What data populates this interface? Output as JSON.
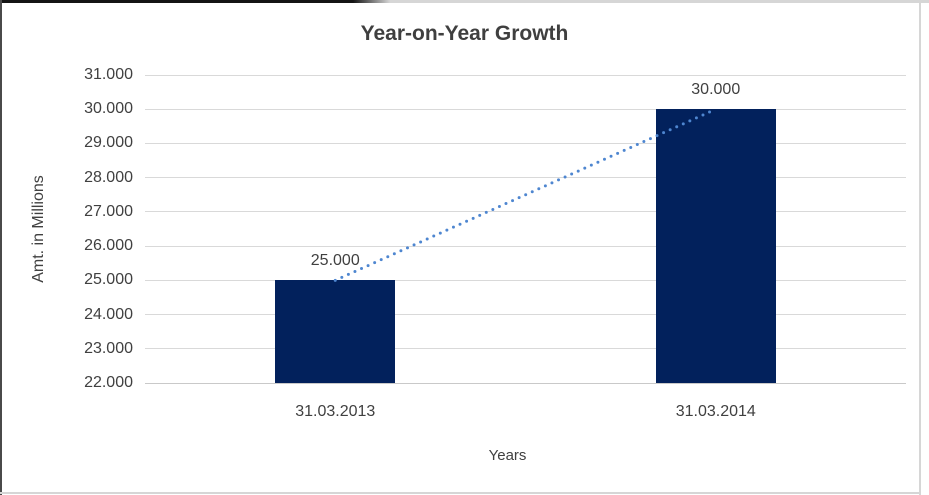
{
  "chart_data": {
    "type": "bar",
    "title": "Year-on-Year Growth",
    "xlabel": "Years",
    "ylabel": "Amt. in Millions",
    "categories": [
      "31.03.2013",
      "31.03.2014"
    ],
    "values": [
      25000,
      30000
    ],
    "value_labels": [
      "25.000",
      "30.000"
    ],
    "ylim": [
      22000,
      31000
    ],
    "ytick_step": 1000,
    "ytick_labels": [
      "31.000",
      "30.000",
      "29.000",
      "28.000",
      "27.000",
      "26.000",
      "25.000",
      "24.000",
      "23.000",
      "22.000"
    ],
    "grid": true,
    "legend": "none",
    "trendline": {
      "style": "dotted",
      "from_category": "31.03.2013",
      "to_category": "31.03.2014"
    },
    "colors": {
      "bar": "#02215c",
      "trendline": "#4e86d0",
      "gridline": "#d9d9d9",
      "text": "#404040",
      "title": "#3f3f3f",
      "background": "#ffffff"
    }
  }
}
